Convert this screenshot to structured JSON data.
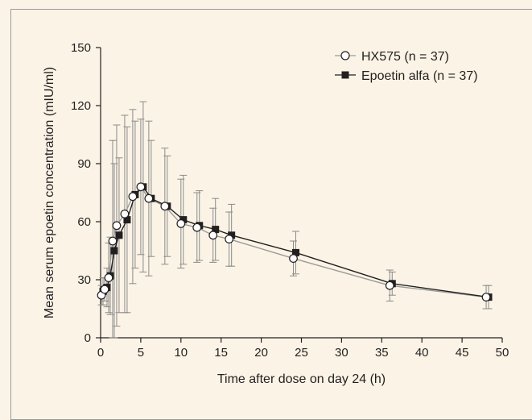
{
  "chart_data": {
    "type": "line",
    "title": "",
    "xlabel": "Time after dose on day 24 (h)",
    "ylabel": "Mean serum epoetin concentration (mIU/ml)",
    "xlim": [
      0,
      50
    ],
    "ylim": [
      0,
      150
    ],
    "xticks": [
      0,
      5,
      10,
      15,
      20,
      25,
      30,
      35,
      40,
      45,
      50
    ],
    "yticks": [
      0,
      30,
      60,
      90,
      120,
      150
    ],
    "grid": false,
    "legend_position": "top-right",
    "series": [
      {
        "name": "HX575 (n = 37)",
        "marker": "open-circle",
        "color": "#9b9b9b",
        "points": [
          {
            "x": 0.1,
            "y": 22,
            "err": 5
          },
          {
            "x": 0.5,
            "y": 25,
            "err": 6
          },
          {
            "x": 1.0,
            "y": 31,
            "err": 18
          },
          {
            "x": 1.5,
            "y": 50,
            "err": 52
          },
          {
            "x": 2.0,
            "y": 58,
            "err": 52
          },
          {
            "x": 3.0,
            "y": 64,
            "err": 51
          },
          {
            "x": 4.0,
            "y": 73,
            "err": 45
          },
          {
            "x": 5.0,
            "y": 78,
            "err": 35
          },
          {
            "x": 6.0,
            "y": 72,
            "err": 40
          },
          {
            "x": 8.0,
            "y": 68,
            "err": 30
          },
          {
            "x": 10.0,
            "y": 59,
            "err": 23
          },
          {
            "x": 12.0,
            "y": 57,
            "err": 18
          },
          {
            "x": 14.0,
            "y": 53,
            "err": 14
          },
          {
            "x": 16.0,
            "y": 51,
            "err": 14
          },
          {
            "x": 24.0,
            "y": 41,
            "err": 9
          },
          {
            "x": 36.0,
            "y": 27,
            "err": 8
          },
          {
            "x": 48.0,
            "y": 21,
            "err": 6
          }
        ]
      },
      {
        "name": "Epoetin alfa (n = 37)",
        "marker": "filled-square",
        "color": "#231f20",
        "points": [
          {
            "x": 0.3,
            "y": 24,
            "err": 7
          },
          {
            "x": 0.8,
            "y": 26,
            "err": 10
          },
          {
            "x": 1.2,
            "y": 32,
            "err": 20
          },
          {
            "x": 1.7,
            "y": 45,
            "err": 45
          },
          {
            "x": 2.3,
            "y": 53,
            "err": 40
          },
          {
            "x": 3.3,
            "y": 61,
            "err": 48
          },
          {
            "x": 4.3,
            "y": 74,
            "err": 38
          },
          {
            "x": 5.3,
            "y": 78,
            "err": 44
          },
          {
            "x": 6.3,
            "y": 72,
            "err": 30
          },
          {
            "x": 8.3,
            "y": 68,
            "err": 26
          },
          {
            "x": 10.3,
            "y": 61,
            "err": 23
          },
          {
            "x": 12.3,
            "y": 58,
            "err": 18
          },
          {
            "x": 14.3,
            "y": 56,
            "err": 16
          },
          {
            "x": 16.3,
            "y": 53,
            "err": 16
          },
          {
            "x": 24.3,
            "y": 44,
            "err": 11
          },
          {
            "x": 36.3,
            "y": 28,
            "err": 6
          },
          {
            "x": 48.3,
            "y": 21,
            "err": 6
          }
        ]
      }
    ]
  }
}
